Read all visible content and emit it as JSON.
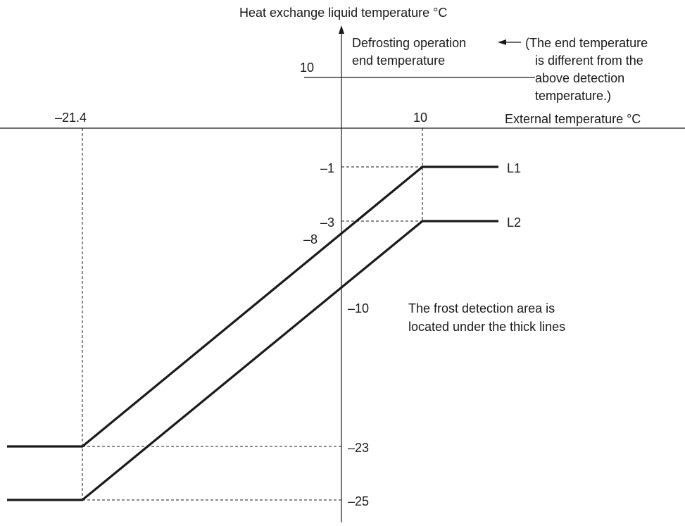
{
  "labels": {
    "y_axis": "Heat exchange liquid temperature °C",
    "x_axis": "External temperature °C",
    "defrost_end_line1": "Defrosting operation",
    "defrost_end_line2": "end temperature",
    "note_lines": [
      "(The end temperature",
      "is different from the",
      "above detection",
      "temperature.)"
    ],
    "frost_area_line1": "The frost detection area is",
    "frost_area_line2": "located under the thick lines",
    "series_l1": "L1",
    "series_l2": "L2"
  },
  "ticks": {
    "y_top_10": "10",
    "x_left": "–21.4",
    "x_right": "10",
    "y_minus1": "–1",
    "y_minus3": "–3",
    "y_minus8": "–8",
    "y_minus10": "–10",
    "y_minus23": "–23",
    "y_minus25": "–25"
  },
  "chart_data": {
    "type": "line",
    "xlabel": "External temperature °C",
    "ylabel": "Heat exchange liquid temperature °C",
    "x_ticks": [
      -21.4,
      10
    ],
    "y_ticks": [
      10,
      -1,
      -3,
      -8,
      -10,
      -23,
      -25
    ],
    "series": [
      {
        "name": "L1",
        "x": [
          -21.4,
          10
        ],
        "y": [
          -23,
          -1
        ]
      },
      {
        "name": "L2",
        "x": [
          -21.4,
          10
        ],
        "y": [
          -25,
          -3
        ]
      }
    ],
    "reference_lines": {
      "defrosting_operation_end_temperature": 10
    },
    "annotations": [
      "Defrosting operation end temperature",
      "(The end temperature is different from the above detection temperature.)",
      "The frost detection area is located under the thick lines"
    ]
  }
}
